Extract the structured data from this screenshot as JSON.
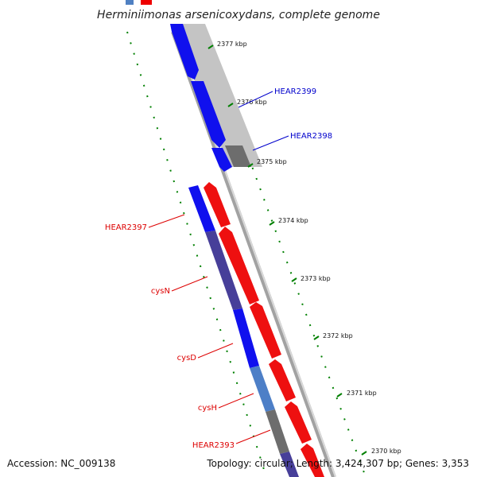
{
  "title": "Herminiimonas arsenicoxydans, complete genome",
  "footer": {
    "accession": "Accession: NC_009138",
    "summary": "Topology: circular; Length: 3,424,307 bp; Genes: 3,353"
  },
  "ticks": [
    "2377 kbp",
    "2376 kbp",
    "2375 kbp",
    "2374 kbp",
    "2373 kbp",
    "2372 kbp",
    "2371 kbp",
    "2370 kbp"
  ],
  "genes_forward": [
    {
      "name": "HEAR2399",
      "color": "#0000cc"
    },
    {
      "name": "HEAR2398",
      "color": "#0000cc"
    }
  ],
  "genes_reverse": [
    {
      "name": "HEAR2397",
      "color": "#dd0000"
    },
    {
      "name": "cysN",
      "color": "#dd0000"
    },
    {
      "name": "cysD",
      "color": "#dd0000"
    },
    {
      "name": "cysH",
      "color": "#dd0000"
    },
    {
      "name": "HEAR2393",
      "color": "#dd0000"
    }
  ],
  "colors": {
    "forward": "#0000ee",
    "reverse": "#ee0000",
    "gc_dot": "#008000",
    "backbone": "#9a9a9a"
  }
}
